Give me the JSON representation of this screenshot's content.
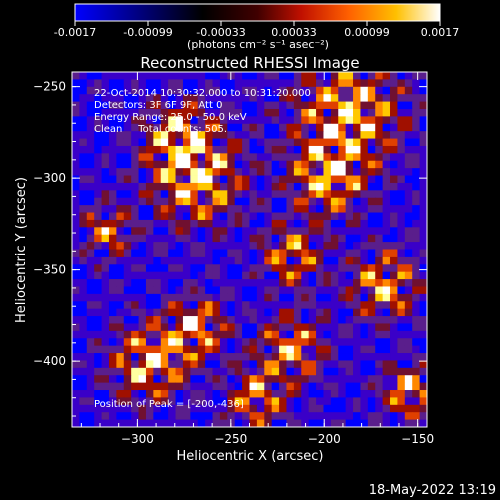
{
  "colorbar": {
    "ticks": [
      "-0.0017",
      "-0.00099",
      "-0.00033",
      "0.00033",
      "0.00099",
      "0.0017"
    ],
    "units_label": "(photons cm⁻² s⁻¹ asec⁻²)",
    "range": [
      -0.0017,
      0.0017
    ]
  },
  "chart_data": {
    "type": "heatmap",
    "title": "Reconstructed RHESSI Image",
    "xlabel": "Heliocentric X (arcsec)",
    "ylabel": "Heliocentric Y (arcsec)",
    "xlim": [
      -335,
      -145
    ],
    "ylim": [
      -436,
      -242
    ],
    "xticks": [
      -300,
      -250,
      -200,
      -150
    ],
    "yticks": [
      -250,
      -300,
      -350,
      -400
    ],
    "xtick_labels": [
      "−300",
      "−250",
      "−200",
      "−150"
    ],
    "ytick_labels": [
      "−250",
      "−300",
      "−350",
      "−400"
    ],
    "annotations": [
      "22-Oct-2014 10:30:32.000 to 10:31:20.000",
      "Detectors: 3F 6F 9F, Att 0",
      "Energy Range: 25.0 - 50.0 keV",
      "Clean     Total counts: 505.",
      "Position of Peak = [-200,-436]"
    ],
    "peak": {
      "x": -200,
      "y": -436
    },
    "colormap": [
      "#0000ff",
      "#3a00c8",
      "#5a1e8c",
      "#701030",
      "#a01000",
      "#e04000",
      "#ff8800",
      "#ffc800",
      "#ffffa0",
      "#ffffff"
    ]
  },
  "footer": {
    "timestamp": "18-May-2022 13:19"
  }
}
